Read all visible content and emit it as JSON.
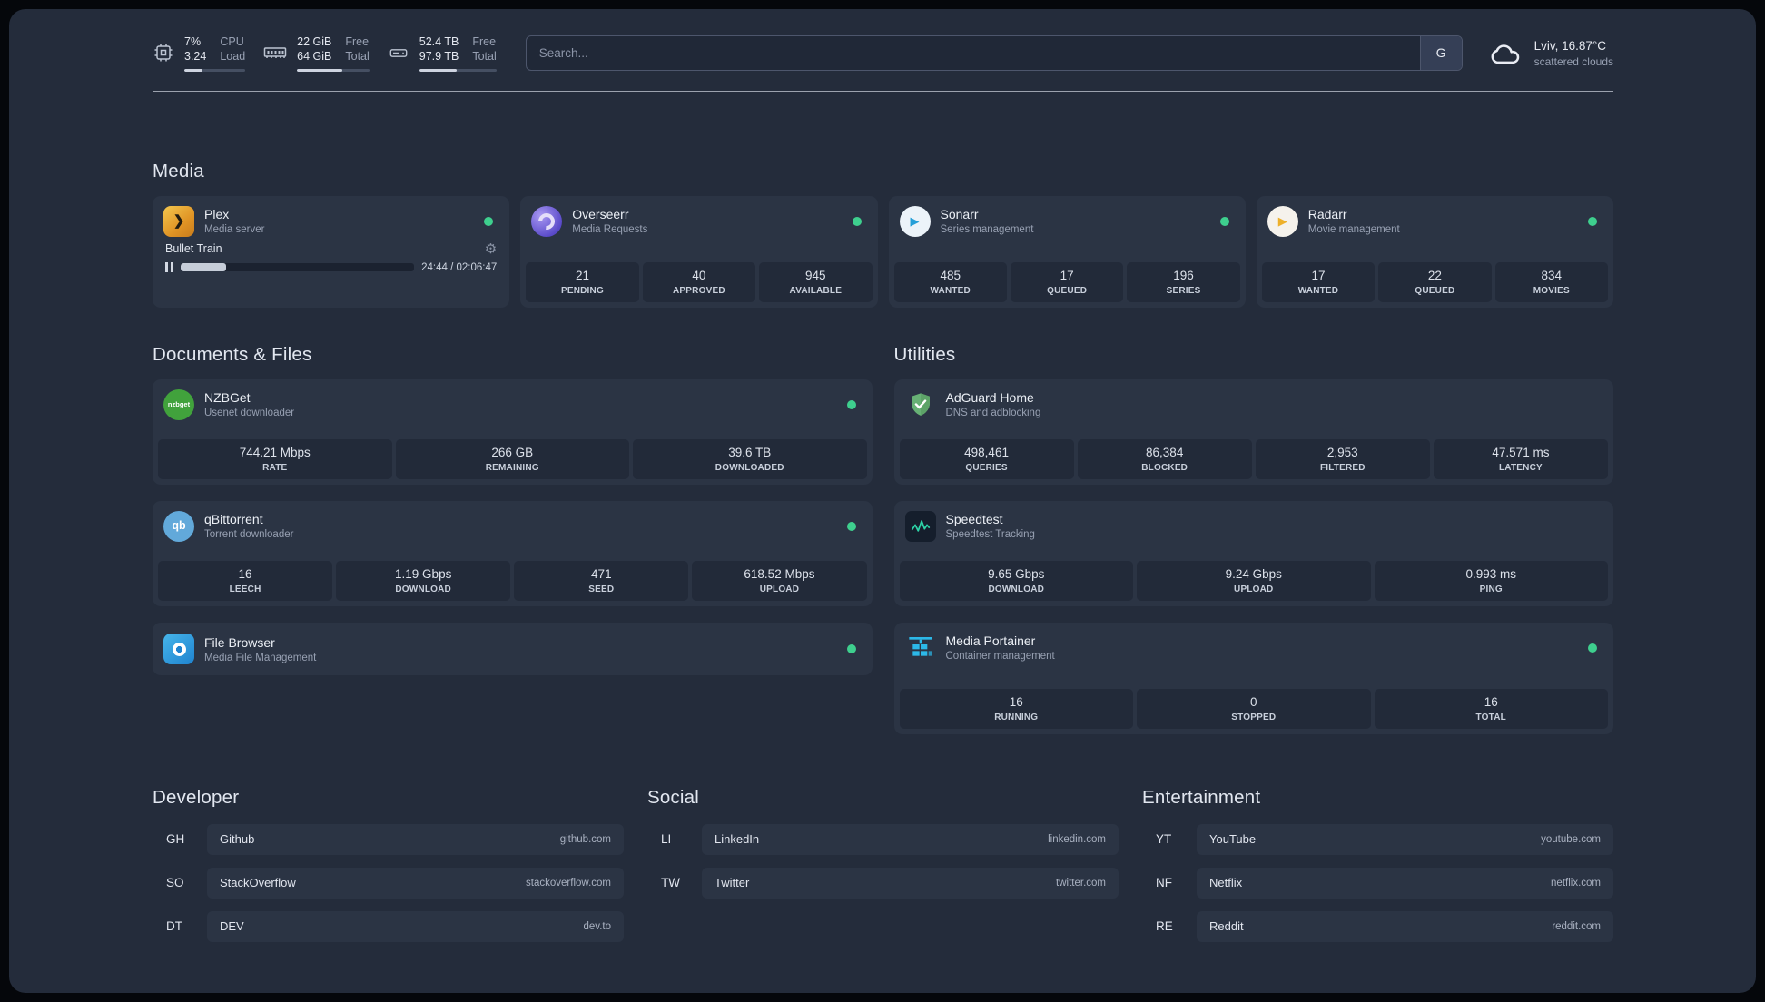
{
  "colors": {
    "frame_bg": "#242c3b",
    "card_bg": "#2b3444",
    "stat_tile_bg": "#222a39",
    "status_online": "#3ecf8e",
    "plex_brand": "#e8a426",
    "portainer_brand": "#2cb8e8",
    "adguard_brand": "#67b175"
  },
  "icons": {
    "plex_glyph": "❯",
    "sonarr_play": "▶",
    "radarr_play": "▶",
    "nzbget_text": "nzbget",
    "qbittorrent_text": "qb",
    "gear": "⚙"
  },
  "topbar": {
    "cpu": {
      "value_top": "7%",
      "value_bottom": "3.24",
      "label_top": "CPU",
      "label_bottom": "Load",
      "bar_percent": 30
    },
    "memory": {
      "value_top": "22 GiB",
      "value_bottom": "64 GiB",
      "label_top": "Free",
      "label_bottom": "Total",
      "bar_percent": 62
    },
    "disk": {
      "value_top": "52.4 TB",
      "value_bottom": "97.9 TB",
      "label_top": "Free",
      "label_bottom": "Total",
      "bar_percent": 48
    },
    "search": {
      "placeholder": "Search...",
      "provider_button": "G"
    },
    "weather": {
      "location": "Lviv, 16.87°C",
      "condition": "scattered clouds"
    }
  },
  "media": {
    "heading": "Media",
    "plex": {
      "title": "Plex",
      "subtitle": "Media server",
      "status": "online",
      "now_playing": "Bullet Train",
      "elapsed_total": "24:44 / 02:06:47",
      "progress_percent": 19.5
    },
    "overseerr": {
      "title": "Overseerr",
      "subtitle": "Media Requests",
      "status": "online",
      "stats": [
        {
          "value": "21",
          "label": "PENDING"
        },
        {
          "value": "40",
          "label": "APPROVED"
        },
        {
          "value": "945",
          "label": "AVAILABLE"
        }
      ]
    },
    "sonarr": {
      "title": "Sonarr",
      "subtitle": "Series management",
      "status": "online",
      "stats": [
        {
          "value": "485",
          "label": "WANTED"
        },
        {
          "value": "17",
          "label": "QUEUED"
        },
        {
          "value": "196",
          "label": "SERIES"
        }
      ]
    },
    "radarr": {
      "title": "Radarr",
      "subtitle": "Movie management",
      "status": "online",
      "stats": [
        {
          "value": "17",
          "label": "WANTED"
        },
        {
          "value": "22",
          "label": "QUEUED"
        },
        {
          "value": "834",
          "label": "MOVIES"
        }
      ]
    }
  },
  "documents": {
    "heading": "Documents & Files",
    "nzbget": {
      "title": "NZBGet",
      "subtitle": "Usenet downloader",
      "status": "online",
      "stats": [
        {
          "value": "744.21 Mbps",
          "label": "RATE"
        },
        {
          "value": "266 GB",
          "label": "REMAINING"
        },
        {
          "value": "39.6 TB",
          "label": "DOWNLOADED"
        }
      ]
    },
    "qbittorrent": {
      "title": "qBittorrent",
      "subtitle": "Torrent downloader",
      "status": "online",
      "stats": [
        {
          "value": "16",
          "label": "LEECH"
        },
        {
          "value": "1.19 Gbps",
          "label": "DOWNLOAD"
        },
        {
          "value": "471",
          "label": "SEED"
        },
        {
          "value": "618.52 Mbps",
          "label": "UPLOAD"
        }
      ]
    },
    "filebrowser": {
      "title": "File Browser",
      "subtitle": "Media File Management",
      "status": "online"
    }
  },
  "utilities": {
    "heading": "Utilities",
    "adguard": {
      "title": "AdGuard Home",
      "subtitle": "DNS and adblocking",
      "stats": [
        {
          "value": "498,461",
          "label": "QUERIES"
        },
        {
          "value": "86,384",
          "label": "BLOCKED"
        },
        {
          "value": "2,953",
          "label": "FILTERED"
        },
        {
          "value": "47.571 ms",
          "label": "LATENCY"
        }
      ]
    },
    "speedtest": {
      "title": "Speedtest",
      "subtitle": "Speedtest Tracking",
      "stats": [
        {
          "value": "9.65 Gbps",
          "label": "DOWNLOAD"
        },
        {
          "value": "9.24 Gbps",
          "label": "UPLOAD"
        },
        {
          "value": "0.993 ms",
          "label": "PING"
        }
      ]
    },
    "portainer": {
      "title": "Media Portainer",
      "subtitle": "Container management",
      "status": "online",
      "stats": [
        {
          "value": "16",
          "label": "RUNNING"
        },
        {
          "value": "0",
          "label": "STOPPED"
        },
        {
          "value": "16",
          "label": "TOTAL"
        }
      ]
    }
  },
  "bookmarks": [
    {
      "heading": "Developer",
      "items": [
        {
          "abbr": "GH",
          "name": "Github",
          "domain": "github.com"
        },
        {
          "abbr": "SO",
          "name": "StackOverflow",
          "domain": "stackoverflow.com"
        },
        {
          "abbr": "DT",
          "name": "DEV",
          "domain": "dev.to"
        }
      ]
    },
    {
      "heading": "Social",
      "items": [
        {
          "abbr": "LI",
          "name": "LinkedIn",
          "domain": "linkedin.com"
        },
        {
          "abbr": "TW",
          "name": "Twitter",
          "domain": "twitter.com"
        }
      ]
    },
    {
      "heading": "Entertainment",
      "items": [
        {
          "abbr": "YT",
          "name": "YouTube",
          "domain": "youtube.com"
        },
        {
          "abbr": "NF",
          "name": "Netflix",
          "domain": "netflix.com"
        },
        {
          "abbr": "RE",
          "name": "Reddit",
          "domain": "reddit.com"
        }
      ]
    }
  ]
}
